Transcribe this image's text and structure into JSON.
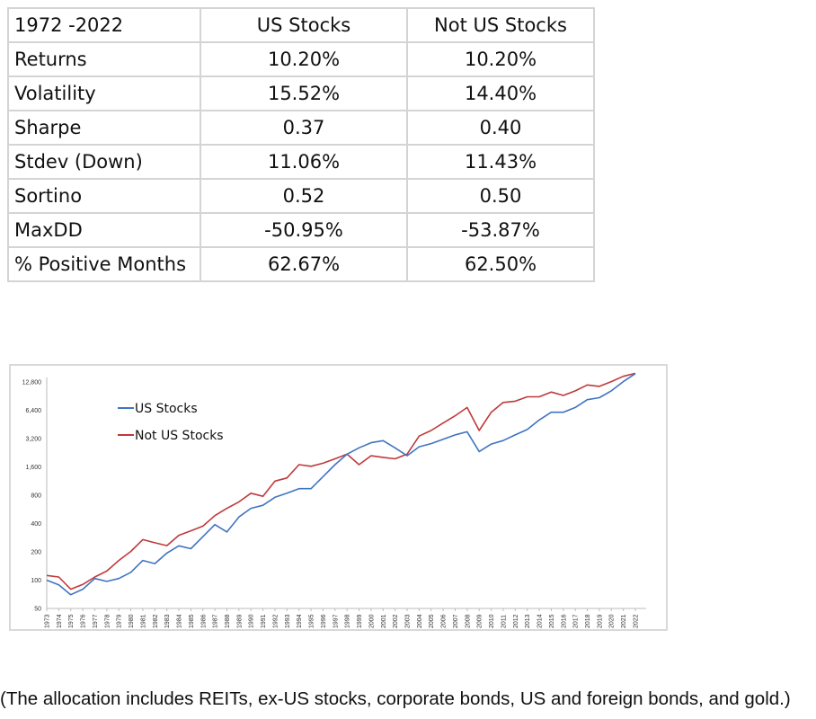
{
  "table": {
    "headers": [
      "1972 -2022",
      "US Stocks",
      "Not US Stocks"
    ],
    "rows": [
      [
        "Returns",
        "10.20%",
        "10.20%"
      ],
      [
        "Volatility",
        "15.52%",
        "14.40%"
      ],
      [
        "Sharpe",
        "0.37",
        "0.40"
      ],
      [
        "Stdev (Down)",
        "11.06%",
        "11.43%"
      ],
      [
        "Sortino",
        "0.52",
        "0.50"
      ],
      [
        "MaxDD",
        "-50.95%",
        "-53.87%"
      ],
      [
        "% Positive Months",
        "62.67%",
        "62.50%"
      ]
    ]
  },
  "chart_data": {
    "type": "line",
    "title": "",
    "xlabel": "",
    "ylabel": "",
    "y_scale": "log2",
    "ylim": [
      50,
      12800
    ],
    "y_ticks": [
      "50",
      "100",
      "200",
      "400",
      "800",
      "1,600",
      "3,200",
      "6,400",
      "12,800"
    ],
    "y_tick_values": [
      50,
      100,
      200,
      400,
      800,
      1600,
      3200,
      6400,
      12800
    ],
    "x": [
      1973,
      1974,
      1975,
      1976,
      1977,
      1978,
      1979,
      1980,
      1981,
      1982,
      1983,
      1984,
      1985,
      1986,
      1987,
      1988,
      1989,
      1990,
      1991,
      1992,
      1993,
      1994,
      1995,
      1996,
      1997,
      1998,
      1999,
      2000,
      2001,
      2002,
      2003,
      2004,
      2005,
      2006,
      2007,
      2008,
      2009,
      2010,
      2011,
      2012,
      2013,
      2014,
      2015,
      2016,
      2017,
      2018,
      2019,
      2020,
      2021,
      2022
    ],
    "x_tick_labels": [
      "1973",
      "1974",
      "1975",
      "1976",
      "1977",
      "1978",
      "1979",
      "1980",
      "1981",
      "1982",
      "1983",
      "1984",
      "1985",
      "1986",
      "1987",
      "1988",
      "1989",
      "1990",
      "1991",
      "1992",
      "1993",
      "1994",
      "1995",
      "1996",
      "1997",
      "1998",
      "1999",
      "2000",
      "2001",
      "2002",
      "2003",
      "2004",
      "2005",
      "2006",
      "2007",
      "2008",
      "2009",
      "2010",
      "2011",
      "2012",
      "2013",
      "2014",
      "2015",
      "2016",
      "2017",
      "2018",
      "2019",
      "2020",
      "2021",
      "2022"
    ],
    "legend_position": "top-left",
    "grid": false,
    "series": [
      {
        "name": "US Stocks",
        "color": "#3f74c0",
        "values": [
          100,
          89,
          70,
          80,
          104,
          97,
          104,
          121,
          162,
          150,
          194,
          232,
          216,
          290,
          390,
          325,
          470,
          580,
          625,
          760,
          840,
          940,
          940,
          1260,
          1690,
          2185,
          2550,
          2890,
          3040,
          2550,
          2100,
          2620,
          2830,
          3150,
          3500,
          3780,
          2330,
          2800,
          3050,
          3500,
          4000,
          5050,
          6100,
          6100,
          6850,
          8300,
          8700,
          10300,
          12900,
          15700
        ]
      },
      {
        "name": "Not US Stocks",
        "color": "#c0393b",
        "values": [
          112,
          108,
          80,
          90,
          108,
          125,
          162,
          202,
          270,
          250,
          233,
          300,
          335,
          375,
          485,
          580,
          680,
          840,
          780,
          1130,
          1220,
          1690,
          1625,
          1750,
          1950,
          2185,
          1690,
          2100,
          2020,
          1950,
          2185,
          3400,
          3900,
          4680,
          5600,
          6850,
          3900,
          6100,
          7750,
          8000,
          8900,
          8900,
          10000,
          9200,
          10300,
          11900,
          11500,
          12900,
          14700,
          15800
        ]
      }
    ]
  },
  "caption": "(The allocation includes REITs, ex-US stocks, corporate bonds, US and foreign bonds, and gold.)"
}
